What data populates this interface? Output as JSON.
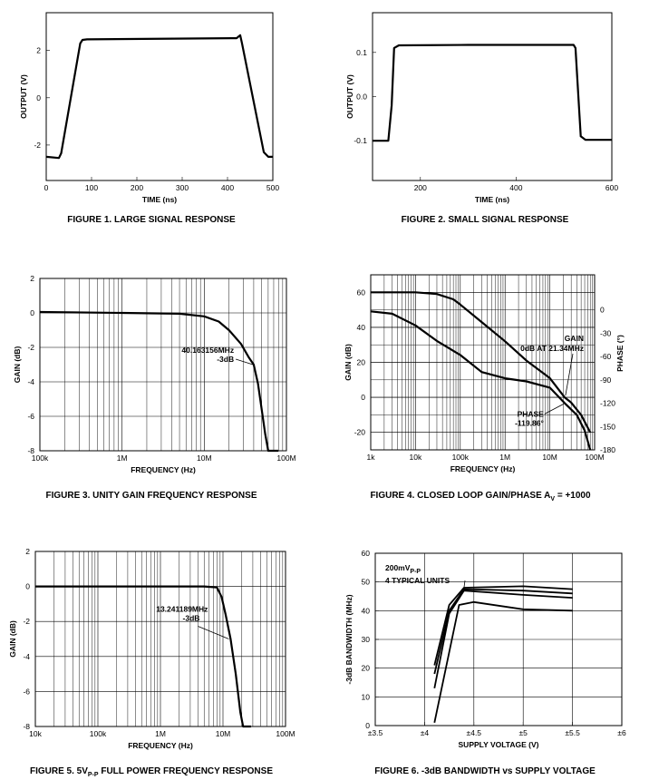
{
  "chart_data": [
    {
      "id": "fig1",
      "type": "line",
      "caption": "FIGURE 1.  LARGE SIGNAL RESPONSE",
      "xlabel": "TIME (ns)",
      "ylabel": "OUTPUT (V)",
      "xlim": [
        0,
        500
      ],
      "ylim": [
        -3.5,
        3.6
      ],
      "xscale": "linear",
      "xticks": [
        0,
        100,
        200,
        300,
        400,
        500
      ],
      "xtick_labels": [
        "0",
        "100",
        "200",
        "300",
        "400",
        "500"
      ],
      "yticks": [
        -2,
        0,
        2
      ],
      "ytick_labels": [
        "-2",
        "0",
        "2"
      ],
      "series": [
        {
          "name": "Output",
          "x": [
            0,
            28,
            33,
            75,
            80,
            90,
            420,
            428,
            432,
            480,
            490,
            500
          ],
          "y": [
            -2.5,
            -2.55,
            -2.35,
            2.3,
            2.45,
            2.47,
            2.52,
            2.65,
            2.3,
            -2.3,
            -2.5,
            -2.5
          ]
        }
      ],
      "annotations": []
    },
    {
      "id": "fig2",
      "type": "line",
      "caption": "FIGURE 2.  SMALL SIGNAL RESPONSE",
      "xlabel": "TIME (ns)",
      "ylabel": "OUTPUT (V)",
      "xlim": [
        100,
        600
      ],
      "ylim": [
        -0.19,
        0.19
      ],
      "xscale": "linear",
      "xticks": [
        200,
        400,
        600
      ],
      "xtick_labels": [
        "200",
        "400",
        "600"
      ],
      "yticks": [
        -0.1,
        0,
        0.1
      ],
      "ytick_labels": [
        "-0.1",
        "0.0",
        "0.1"
      ],
      "series": [
        {
          "name": "Output",
          "x": [
            100,
            133,
            140,
            145,
            155,
            300,
            520,
            524,
            535,
            545,
            600
          ],
          "y": [
            -0.1,
            -0.1,
            -0.02,
            0.11,
            0.116,
            0.117,
            0.117,
            0.11,
            -0.09,
            -0.098,
            -0.098
          ]
        }
      ],
      "annotations": []
    },
    {
      "id": "fig3",
      "type": "line",
      "caption": "FIGURE 3.  UNITY GAIN FREQUENCY RESPONSE",
      "xlabel": "FREQUENCY (Hz)",
      "ylabel": "GAIN (dB)",
      "xlim": [
        100000,
        100000000
      ],
      "ylim": [
        -8,
        2
      ],
      "xscale": "log",
      "xticks": [
        100000,
        1000000,
        10000000,
        100000000
      ],
      "xtick_labels": [
        "100k",
        "1M",
        "10M",
        "100M"
      ],
      "yticks": [
        2,
        0,
        -2,
        -4,
        -6,
        -8
      ],
      "ytick_labels": [
        "2",
        "0",
        "-2",
        "-4",
        "-6",
        "-8"
      ],
      "series": [
        {
          "name": "Gain",
          "x": [
            100000,
            1000000,
            5000000,
            10000000,
            15000000,
            20000000,
            28000000,
            35000000,
            40000000,
            45000000,
            50000000,
            55000000,
            60000000,
            70000000,
            80000000
          ],
          "y": [
            0.05,
            0.0,
            -0.05,
            -0.2,
            -0.5,
            -1.0,
            -1.8,
            -2.6,
            -3.0,
            -4.1,
            -5.6,
            -7.0,
            -8.0,
            -8.0,
            -8.0
          ]
        }
      ],
      "annotations": [
        {
          "text": "40.163156MHz",
          "text2": "-3dB",
          "x": 40163156,
          "y": -3
        }
      ]
    },
    {
      "id": "fig4",
      "type": "line",
      "caption": "FIGURE 4.  CLOSED LOOP GAIN/PHASE",
      "caption_sym": "A",
      "caption_sub": "V",
      "caption_tail": " = +1000",
      "xlabel": "FREQUENCY (Hz)",
      "ylabel": "GAIN (dB)",
      "ylabel_right": "PHASE (°)",
      "xlim": [
        1000,
        100000000
      ],
      "ylim": [
        -30,
        70
      ],
      "xscale": "log",
      "xticks": [
        1000,
        10000,
        100000,
        1000000,
        10000000,
        100000000
      ],
      "xtick_labels": [
        "1k",
        "10k",
        "100k",
        "1M",
        "10M",
        "100M"
      ],
      "yticks": [
        60,
        40,
        20,
        0,
        -20
      ],
      "ytick_labels": [
        "60",
        "40",
        "20",
        "0",
        "-20"
      ],
      "yticks_right": [
        0,
        -30,
        -60,
        -90,
        -120,
        -150,
        -180
      ],
      "ytick_labels_right": [
        "0",
        "-30",
        "-60",
        "-90",
        "-120",
        "-150",
        "-180"
      ],
      "series": [
        {
          "name": "Gain (dB)",
          "axis": "left",
          "x": [
            1000,
            10000,
            30000,
            70000,
            100000,
            300000,
            1000000,
            3000000,
            10000000,
            21340000,
            30000000,
            50000000,
            80000000
          ],
          "y": [
            60,
            60,
            59,
            56,
            53,
            43,
            32,
            21,
            11,
            0,
            -3,
            -10,
            -20
          ]
        },
        {
          "name": "Phase (°)",
          "axis": "right",
          "x": [
            1000,
            3000,
            10000,
            30000,
            100000,
            300000,
            1000000,
            3000000,
            10000000,
            21340000,
            40000000,
            60000000,
            80000000
          ],
          "y": [
            -2,
            -5,
            -20,
            -40,
            -58,
            -80,
            -88,
            -92,
            -100,
            -119.86,
            -135,
            -155,
            -180
          ]
        }
      ],
      "annotations": [
        {
          "text": "GAIN",
          "text2": "0dB AT 21.34MHz",
          "x": 21340000,
          "y": 0
        },
        {
          "text": "PHASE",
          "text2": "-119.86°",
          "x": 21340000,
          "y": -119.86
        }
      ]
    },
    {
      "id": "fig5",
      "type": "line",
      "caption": "FIGURE 5.  5V",
      "caption_sub": "P-P",
      "caption_tail": " FULL POWER FREQUENCY RESPONSE",
      "xlabel": "FREQUENCY (Hz)",
      "ylabel": "GAIN (dB)",
      "xlim": [
        10000,
        100000000
      ],
      "ylim": [
        -8,
        2
      ],
      "xscale": "log",
      "xticks": [
        10000,
        100000,
        1000000,
        10000000,
        100000000
      ],
      "xtick_labels": [
        "10k",
        "100k",
        "1M",
        "10M",
        "100M"
      ],
      "yticks": [
        2,
        0,
        -2,
        -4,
        -6,
        -8
      ],
      "ytick_labels": [
        "2",
        "0",
        "-2",
        "-4",
        "-6",
        "-8"
      ],
      "series": [
        {
          "name": "Gain",
          "x": [
            10000,
            1000000,
            5000000,
            8000000,
            9500000,
            11000000,
            13241189,
            16000000,
            19000000,
            21000000,
            25000000,
            28000000
          ],
          "y": [
            0,
            0,
            0,
            -0.05,
            -0.6,
            -1.6,
            -3.0,
            -5.0,
            -7.2,
            -8.0,
            -8.0,
            -8.0
          ]
        }
      ],
      "annotations": [
        {
          "text": "13.241189MHz",
          "text2": "-3dB",
          "x": 13241189,
          "y": -3
        }
      ]
    },
    {
      "id": "fig6",
      "type": "line",
      "caption": "FIGURE 6.  -3dB BANDWIDTH vs SUPPLY VOLTAGE",
      "xlabel": "SUPPLY VOLTAGE (V)",
      "ylabel": "-3dB BANDWIDTH (MHz)",
      "xlim": [
        3.5,
        6
      ],
      "ylim": [
        0,
        60
      ],
      "xscale": "linear",
      "xticks": [
        3.5,
        4,
        4.5,
        5,
        5.5,
        6
      ],
      "xtick_labels": [
        "±3.5",
        "±4",
        "±4.5",
        "±5",
        "±5.5",
        "±6"
      ],
      "yticks": [
        0,
        10,
        20,
        30,
        40,
        50,
        60
      ],
      "ytick_labels": [
        "0",
        "10",
        "20",
        "30",
        "40",
        "50",
        "60"
      ],
      "legend_line1": "200mV",
      "legend_sub": "P-P",
      "legend_line2": "4 TYPICAL UNITS",
      "series": [
        {
          "name": "Unit 1",
          "x": [
            4.1,
            4.25,
            4.4,
            5.0,
            5.5
          ],
          "y": [
            21,
            42,
            48,
            48.5,
            47.5
          ]
        },
        {
          "name": "Unit 2",
          "x": [
            4.1,
            4.25,
            4.4,
            5.0,
            5.5
          ],
          "y": [
            18,
            40,
            47.5,
            47,
            46
          ]
        },
        {
          "name": "Unit 3",
          "x": [
            4.1,
            4.25,
            4.4,
            5.0,
            5.5
          ],
          "y": [
            13,
            39,
            47,
            45.5,
            44.5
          ]
        },
        {
          "name": "Unit 4",
          "x": [
            4.1,
            4.35,
            4.5,
            5.0,
            5.5
          ],
          "y": [
            1,
            42,
            43,
            40.5,
            40
          ]
        }
      ],
      "annotations": []
    }
  ]
}
